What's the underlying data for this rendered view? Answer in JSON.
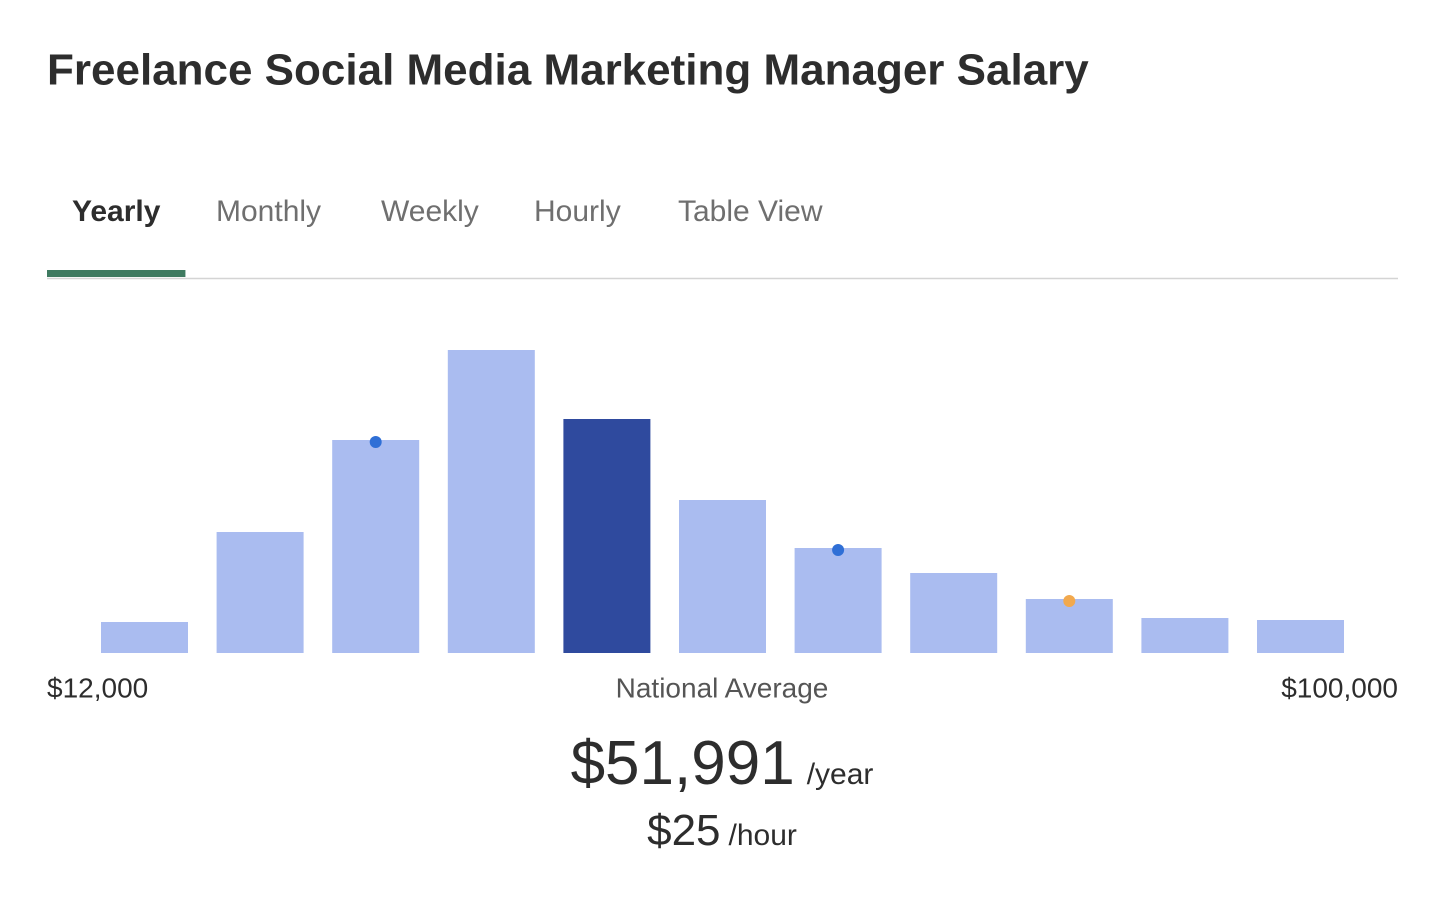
{
  "title": "Freelance Social Media Marketing Manager Salary",
  "tabs": [
    "Yearly",
    "Monthly",
    "Weekly",
    "Hourly",
    "Table View"
  ],
  "active_tab": 0,
  "chart_data": {
    "type": "bar",
    "categories": [
      null,
      null,
      null,
      null,
      null,
      null,
      null,
      null,
      null,
      null,
      null
    ],
    "values": [
      31,
      121,
      213,
      303,
      234,
      153,
      105,
      80,
      54,
      35,
      33
    ],
    "colors": [
      "#aabcf0",
      "#aabcf0",
      "#aabcf0",
      "#aabcf0",
      "#2f4a9e",
      "#aabcf0",
      "#aabcf0",
      "#aabcf0",
      "#aabcf0",
      "#aabcf0",
      "#aabcf0"
    ],
    "markers": [
      {
        "bar": 2,
        "color": "#2f6fd6"
      },
      {
        "bar": 6,
        "color": "#2f6fd6"
      },
      {
        "bar": 8,
        "color": "#f2a94e"
      }
    ],
    "xlim": [
      12000,
      100000
    ],
    "xticks": [
      {
        "value": 12000,
        "label": "$12,000"
      },
      {
        "value": 100000,
        "label": "$100,000"
      }
    ]
  },
  "average": {
    "label": "National Average",
    "yearly": "$51,991",
    "yearly_unit": "/year",
    "hourly": "$25",
    "hourly_unit": "/hour"
  }
}
